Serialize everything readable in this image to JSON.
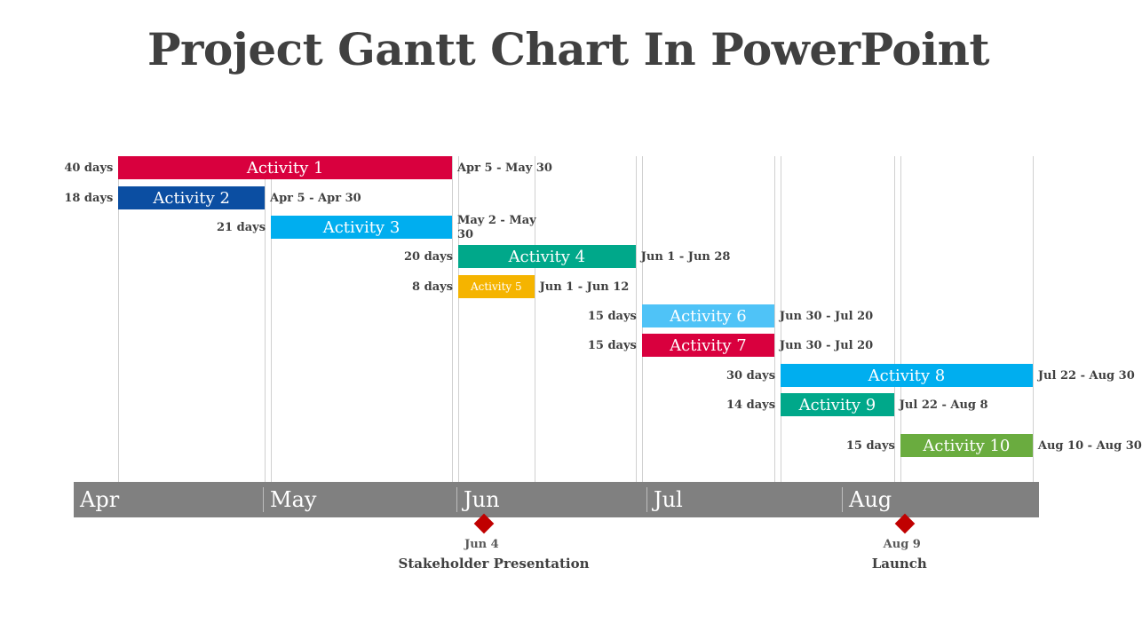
{
  "title": "Project Gantt Chart In PowerPoint",
  "chart_data": {
    "type": "gantt",
    "months": [
      "Apr",
      "May",
      "Jun",
      "Jul",
      "Aug"
    ],
    "tasks": [
      {
        "name": "Activity 1",
        "duration": "40 days",
        "range": "Apr 5 - May 30",
        "start": "Apr 5",
        "end": "May 30",
        "color": "#d9003e"
      },
      {
        "name": "Activity 2",
        "duration": "18 days",
        "range": "Apr 5 - Apr 30",
        "start": "Apr 5",
        "end": "Apr 30",
        "color": "#0b4ea2"
      },
      {
        "name": "Activity 3",
        "duration": "21 days",
        "range": "May 2 - May 30",
        "start": "May 2",
        "end": "May 30",
        "color": "#00aeef"
      },
      {
        "name": "Activity 4",
        "duration": "20 days",
        "range": "Jun 1 - Jun 28",
        "start": "Jun 1",
        "end": "Jun 28",
        "color": "#00a88a"
      },
      {
        "name": "Activity 5",
        "duration": "8 days",
        "range": "Jun 1 - Jun 12",
        "start": "Jun 1",
        "end": "Jun 12",
        "color": "#f5b400"
      },
      {
        "name": "Activity 6",
        "duration": "15 days",
        "range": "Jun 30 - Jul 20",
        "start": "Jun 30",
        "end": "Jul 20",
        "color": "#4fc3f7"
      },
      {
        "name": "Activity 7",
        "duration": "15 days",
        "range": "Jun 30 - Jul 20",
        "start": "Jun 30",
        "end": "Jul 20",
        "color": "#d9003e"
      },
      {
        "name": "Activity 8",
        "duration": "30 days",
        "range": "Jul 22 - Aug 30",
        "start": "Jul 22",
        "end": "Aug 30",
        "color": "#00aeef"
      },
      {
        "name": "Activity 9",
        "duration": "14 days",
        "range": "Jul 22 - Aug 8",
        "start": "Jul 22",
        "end": "Aug 8",
        "color": "#00a88a"
      },
      {
        "name": "Activity 10",
        "duration": "15 days",
        "range": "Aug 10 - Aug 30",
        "start": "Aug 10",
        "end": "Aug 30",
        "color": "#6aac3f"
      }
    ],
    "milestones": [
      {
        "date": "Jun 4",
        "label": "Stakeholder Presentation",
        "color": "#c00000"
      },
      {
        "date": "Aug 9",
        "label": "Launch",
        "color": "#c00000"
      }
    ]
  }
}
